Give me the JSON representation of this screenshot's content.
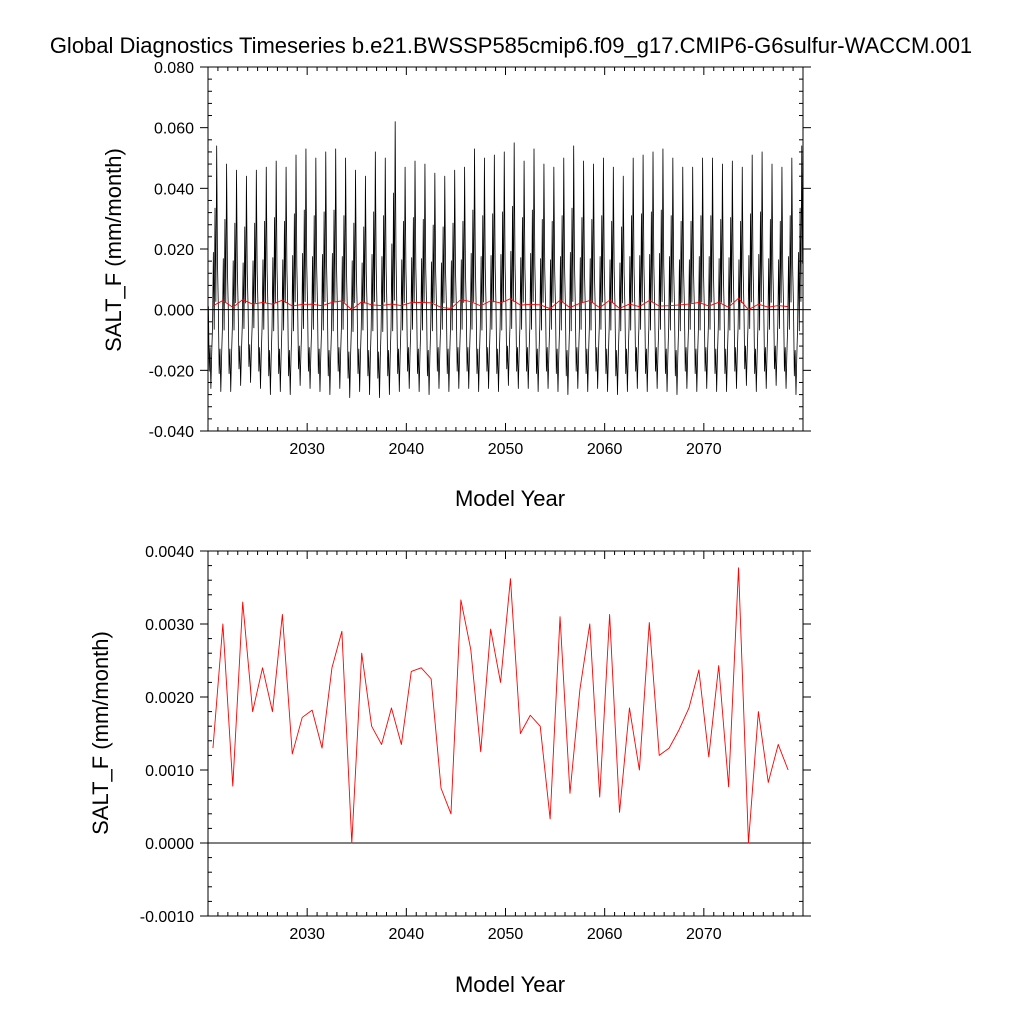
{
  "figure": {
    "title": "Global Diagnostics Timeseries b.e21.BWSSP585cmip6.f09_g17.CMIP6-G6sulfur-WACCM.001"
  },
  "chart_data": [
    {
      "type": "line",
      "xlabel": "Model Year",
      "ylabel": "SALT_F (mm/month)",
      "xlim": [
        2020,
        2080
      ],
      "ylim": [
        -0.04,
        0.08
      ],
      "xticks": [
        2030,
        2040,
        2050,
        2060,
        2070
      ],
      "xtick_labels": [
        "2030",
        "2040",
        "2050",
        "2060",
        "2070"
      ],
      "yticks": [
        -0.04,
        -0.02,
        0.0,
        0.02,
        0.04,
        0.06,
        0.08
      ],
      "ytick_labels": [
        "-0.040",
        "-0.020",
        "0.000",
        "0.020",
        "0.040",
        "0.060",
        "0.080"
      ],
      "reference_line": 0,
      "series": [
        {
          "color": "#000000",
          "sampling": "monthly",
          "start_year": 2020,
          "annual_peaks": [
            0.054,
            0.048,
            0.046,
            0.044,
            0.046,
            0.047,
            0.049,
            0.047,
            0.051,
            0.053,
            0.05,
            0.052,
            0.053,
            0.05,
            0.046,
            0.044,
            0.052,
            0.05,
            0.062,
            0.047,
            0.049,
            0.048,
            0.045,
            0.044,
            0.046,
            0.047,
            0.053,
            0.05,
            0.051,
            0.052,
            0.055,
            0.049,
            0.053,
            0.048,
            0.047,
            0.05,
            0.054,
            0.049,
            0.048,
            0.05,
            0.047,
            0.044,
            0.05,
            0.051,
            0.052,
            0.053,
            0.05,
            0.047,
            0.047,
            0.05,
            0.05,
            0.048,
            0.049,
            0.047,
            0.051,
            0.052,
            0.048,
            0.047,
            0.05,
            0.054
          ],
          "annual_troughs": [
            -0.026,
            -0.027,
            -0.027,
            -0.025,
            -0.024,
            -0.026,
            -0.028,
            -0.027,
            -0.028,
            -0.025,
            -0.026,
            -0.027,
            -0.028,
            -0.026,
            -0.029,
            -0.027,
            -0.028,
            -0.029,
            -0.028,
            -0.027,
            -0.026,
            -0.027,
            -0.028,
            -0.026,
            -0.027,
            -0.026,
            -0.026,
            -0.027,
            -0.026,
            -0.027,
            -0.025,
            -0.026,
            -0.026,
            -0.027,
            -0.026,
            -0.027,
            -0.028,
            -0.026,
            -0.027,
            -0.026,
            -0.027,
            -0.028,
            -0.027,
            -0.026,
            -0.027,
            -0.026,
            -0.027,
            -0.028,
            -0.026,
            -0.027,
            -0.026,
            -0.027,
            -0.027,
            -0.026,
            -0.025,
            -0.027,
            -0.026,
            -0.025,
            -0.026,
            -0.028
          ]
        },
        {
          "color": "#ff0000",
          "sampling": "annual",
          "x": [
            2020.5,
            2021.5,
            2022.5,
            2023.5,
            2024.5,
            2025.5,
            2026.5,
            2027.5,
            2028.5,
            2029.5,
            2030.5,
            2031.5,
            2032.5,
            2033.5,
            2034.5,
            2035.5,
            2036.5,
            2037.5,
            2038.5,
            2039.5,
            2040.5,
            2041.5,
            2042.5,
            2043.5,
            2044.5,
            2045.5,
            2046.5,
            2047.5,
            2048.5,
            2049.5,
            2050.5,
            2051.5,
            2052.5,
            2053.5,
            2054.5,
            2055.5,
            2056.5,
            2057.5,
            2058.5,
            2059.5,
            2060.5,
            2061.5,
            2062.5,
            2063.5,
            2064.5,
            2065.5,
            2066.5,
            2067.5,
            2068.5,
            2069.5,
            2070.5,
            2071.5,
            2072.5,
            2073.5,
            2074.5,
            2075.5,
            2076.5,
            2077.5,
            2078.5
          ],
          "y": [
            0.0013,
            0.003,
            0.00078,
            0.0033,
            0.0018,
            0.0024,
            0.0018,
            0.00313,
            0.00122,
            0.00172,
            0.00182,
            0.0013,
            0.0024,
            0.0029,
            0.0,
            0.0026,
            0.0016,
            0.00135,
            0.00185,
            0.00135,
            0.00235,
            0.0024,
            0.00225,
            0.00075,
            0.0004,
            0.00333,
            0.00265,
            0.00125,
            0.00293,
            0.0022,
            0.00362,
            0.0015,
            0.00175,
            0.0016,
            0.00033,
            0.0031,
            0.00068,
            0.0021,
            0.003,
            0.00063,
            0.00313,
            0.00042,
            0.00185,
            0.001,
            0.00302,
            0.0012,
            0.0013,
            0.00155,
            0.00185,
            0.00237,
            0.00118,
            0.00243,
            0.00077,
            0.00377,
            0.0,
            0.0018,
            0.00083,
            0.00135,
            0.001
          ]
        }
      ]
    },
    {
      "type": "line",
      "xlabel": "Model Year",
      "ylabel": "SALT_F (mm/month)",
      "xlim": [
        2020,
        2080
      ],
      "ylim": [
        -0.001,
        0.004
      ],
      "xticks": [
        2030,
        2040,
        2050,
        2060,
        2070
      ],
      "xtick_labels": [
        "2030",
        "2040",
        "2050",
        "2060",
        "2070"
      ],
      "yticks": [
        -0.001,
        0.0,
        0.001,
        0.002,
        0.003,
        0.004
      ],
      "ytick_labels": [
        "-0.0010",
        "0.0000",
        "0.0010",
        "0.0020",
        "0.0030",
        "0.0040"
      ],
      "reference_line": 0,
      "series": [
        {
          "color": "#ff0000",
          "sampling": "annual",
          "x": [
            2020.5,
            2021.5,
            2022.5,
            2023.5,
            2024.5,
            2025.5,
            2026.5,
            2027.5,
            2028.5,
            2029.5,
            2030.5,
            2031.5,
            2032.5,
            2033.5,
            2034.5,
            2035.5,
            2036.5,
            2037.5,
            2038.5,
            2039.5,
            2040.5,
            2041.5,
            2042.5,
            2043.5,
            2044.5,
            2045.5,
            2046.5,
            2047.5,
            2048.5,
            2049.5,
            2050.5,
            2051.5,
            2052.5,
            2053.5,
            2054.5,
            2055.5,
            2056.5,
            2057.5,
            2058.5,
            2059.5,
            2060.5,
            2061.5,
            2062.5,
            2063.5,
            2064.5,
            2065.5,
            2066.5,
            2067.5,
            2068.5,
            2069.5,
            2070.5,
            2071.5,
            2072.5,
            2073.5,
            2074.5,
            2075.5,
            2076.5,
            2077.5,
            2078.5
          ],
          "y": [
            0.0013,
            0.003,
            0.00078,
            0.0033,
            0.0018,
            0.0024,
            0.0018,
            0.00313,
            0.00122,
            0.00172,
            0.00182,
            0.0013,
            0.0024,
            0.0029,
            0.0,
            0.0026,
            0.0016,
            0.00135,
            0.00185,
            0.00135,
            0.00235,
            0.0024,
            0.00225,
            0.00075,
            0.0004,
            0.00333,
            0.00265,
            0.00125,
            0.00293,
            0.0022,
            0.00362,
            0.0015,
            0.00175,
            0.0016,
            0.00033,
            0.0031,
            0.00068,
            0.0021,
            0.003,
            0.00063,
            0.00313,
            0.00042,
            0.00185,
            0.001,
            0.00302,
            0.0012,
            0.0013,
            0.00155,
            0.00185,
            0.00237,
            0.00118,
            0.00243,
            0.00077,
            0.00377,
            0.0,
            0.0018,
            0.00083,
            0.00135,
            0.001
          ]
        }
      ]
    }
  ]
}
